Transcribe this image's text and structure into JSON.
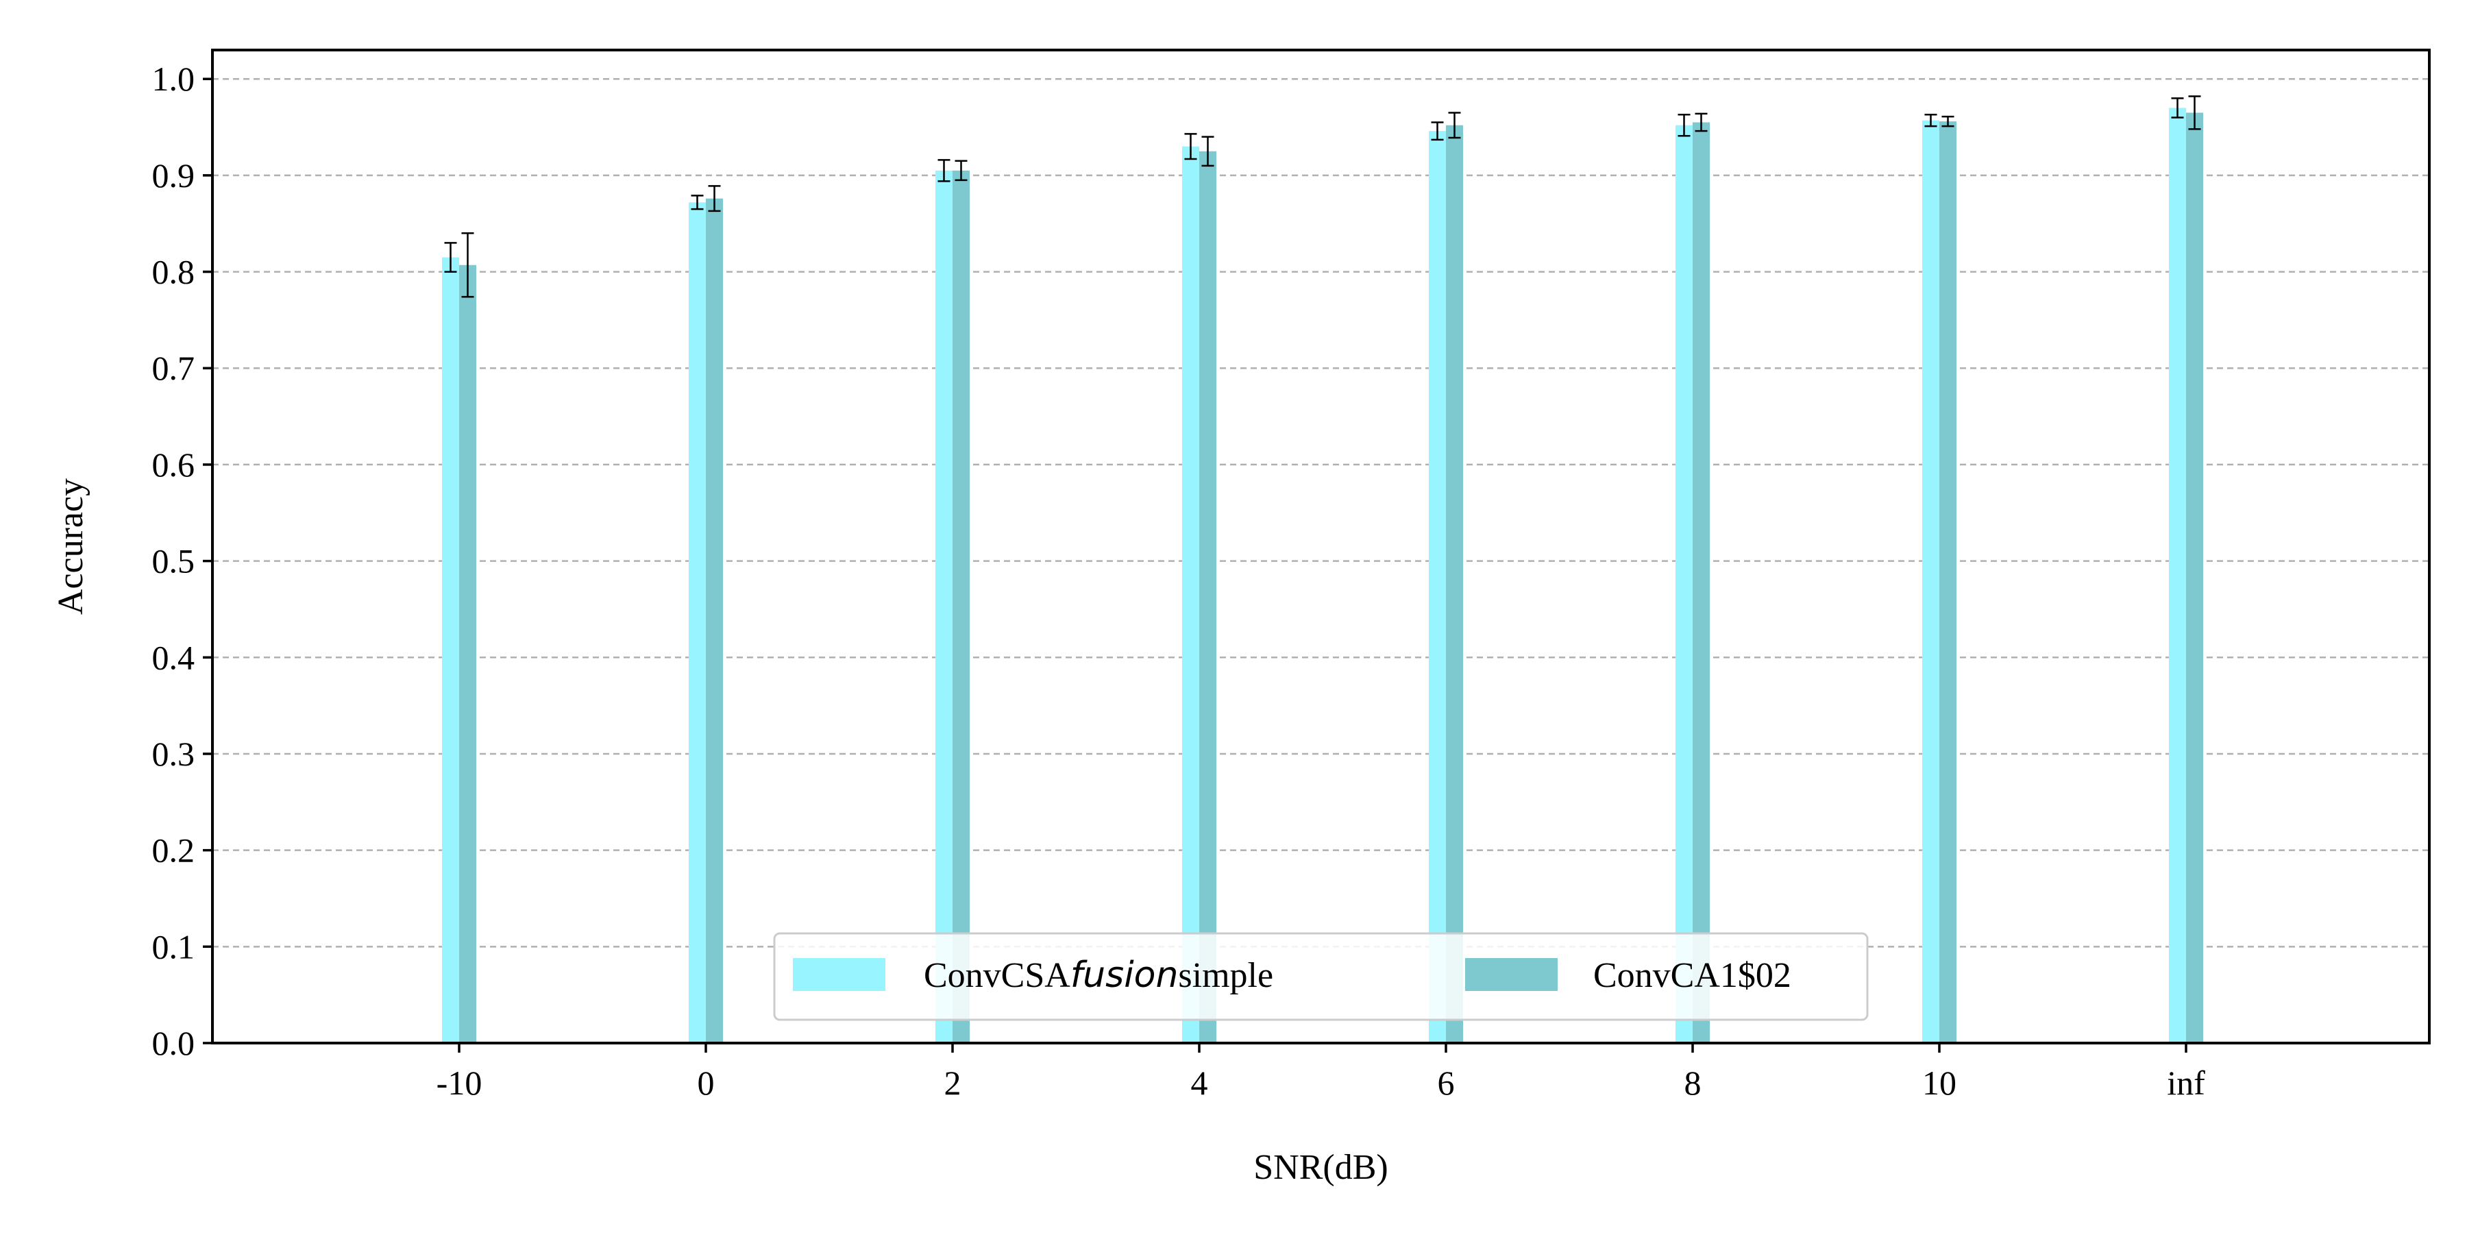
{
  "chart_data": {
    "type": "bar",
    "title": "",
    "xlabel": "SNR(dB)",
    "ylabel": "Accuracy",
    "categories": [
      "-10",
      "0",
      "2",
      "4",
      "6",
      "8",
      "10",
      "inf"
    ],
    "ylim": [
      0.0,
      1.03
    ],
    "yticks": [
      "0.0",
      "0.1",
      "0.2",
      "0.3",
      "0.4",
      "0.5",
      "0.6",
      "0.7",
      "0.8",
      "0.9",
      "1.0"
    ],
    "grid": "y, dashed",
    "legend_position": "lower center",
    "series": [
      {
        "name_parts": [
          "ConvCSA",
          "fusion",
          "simple"
        ],
        "color": "#98f5ff",
        "values": [
          0.815,
          0.872,
          0.905,
          0.93,
          0.946,
          0.952,
          0.957,
          0.97
        ],
        "errors": [
          0.015,
          0.007,
          0.011,
          0.013,
          0.009,
          0.011,
          0.006,
          0.01
        ]
      },
      {
        "name": "ConvCA1$02",
        "color": "#7ec8cf",
        "values": [
          0.807,
          0.876,
          0.905,
          0.925,
          0.952,
          0.955,
          0.956,
          0.965
        ],
        "errors": [
          0.033,
          0.013,
          0.01,
          0.015,
          0.013,
          0.009,
          0.005,
          0.017
        ]
      }
    ]
  }
}
